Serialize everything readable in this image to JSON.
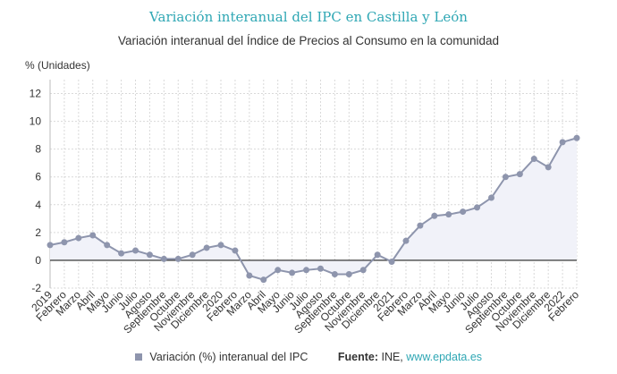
{
  "header": {
    "title": "Variación interanual del IPC en Castilla y León",
    "subtitle": "Variación interanual del Índice de Precios al Consumo en la comunidad"
  },
  "footer": {
    "source_label": "Fuente:",
    "source_name": "INE,",
    "source_link": "www.epdata.es"
  },
  "colors": {
    "series": "#8e95ad",
    "area": "#f1f2f9",
    "zero_line": "#222222",
    "grid": "#d9d9d9",
    "title": "#2fa7b4"
  },
  "chart_data": {
    "type": "area",
    "ylabel": "% (Unidades)",
    "ylim": [
      -2,
      13
    ],
    "yticks": [
      -2,
      0,
      2,
      4,
      6,
      8,
      10,
      12
    ],
    "grid": true,
    "legend_position": "bottom",
    "categories": [
      "2019",
      "Febrero",
      "Marzo",
      "Abril",
      "Mayo",
      "Junio",
      "Julio",
      "Agosto",
      "Septiembre",
      "Octubre",
      "Noviembre",
      "Diciembre",
      "2020",
      "Febrero",
      "Marzo",
      "Abril",
      "Mayo",
      "Junio",
      "Julio",
      "Agosto",
      "Septiembre",
      "Octubre",
      "Noviembre",
      "Diciembre",
      "2021",
      "Febrero",
      "Marzo",
      "Abril",
      "Mayo",
      "Junio",
      "Julio",
      "Agosto",
      "Septiembre",
      "Octubre",
      "Noviembre",
      "Diciembre",
      "2022",
      "Febrero"
    ],
    "series": [
      {
        "name": "Variación (%) interanual del IPC",
        "values": [
          1.1,
          1.3,
          1.6,
          1.8,
          1.1,
          0.5,
          0.7,
          0.4,
          0.1,
          0.1,
          0.4,
          0.9,
          1.1,
          0.7,
          -1.1,
          -1.4,
          -0.7,
          -0.9,
          -0.7,
          -0.6,
          -1.0,
          -1.0,
          -0.7,
          0.4,
          -0.1,
          1.4,
          2.5,
          3.2,
          3.3,
          3.5,
          3.8,
          4.5,
          6.0,
          6.2,
          7.3,
          6.7,
          8.5,
          8.8
        ]
      }
    ]
  }
}
